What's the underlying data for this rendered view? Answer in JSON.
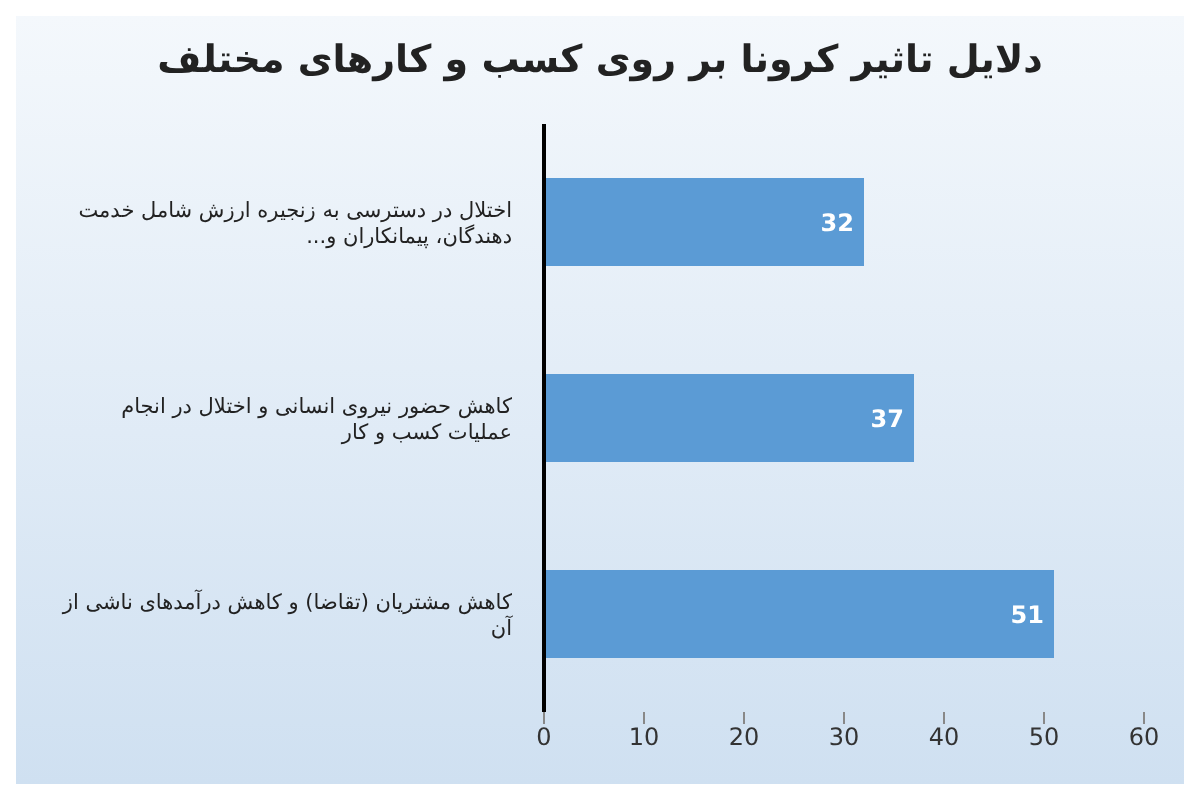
{
  "chart_data": {
    "type": "bar",
    "orientation": "horizontal",
    "title": "دلایل تاثیر کرونا بر روی کسب و کارهای مختلف",
    "categories": [
      "اختلال در دسترسی به زنجیره ارزش شامل خدمت دهندگان، پیمانکاران و...",
      "کاهش حضور نیروی انسانی و اختلال در انجام عملیات کسب و کار",
      "کاهش مشتریان (تقاضا) و کاهش درآمدهای ناشی از آن"
    ],
    "values": [
      32,
      37,
      51
    ],
    "color": "#5b9bd5",
    "xlim": [
      0,
      60
    ],
    "xticks": [
      0,
      10,
      20,
      30,
      40,
      50,
      60
    ],
    "grid": false,
    "legend": false,
    "data_labels": true
  }
}
